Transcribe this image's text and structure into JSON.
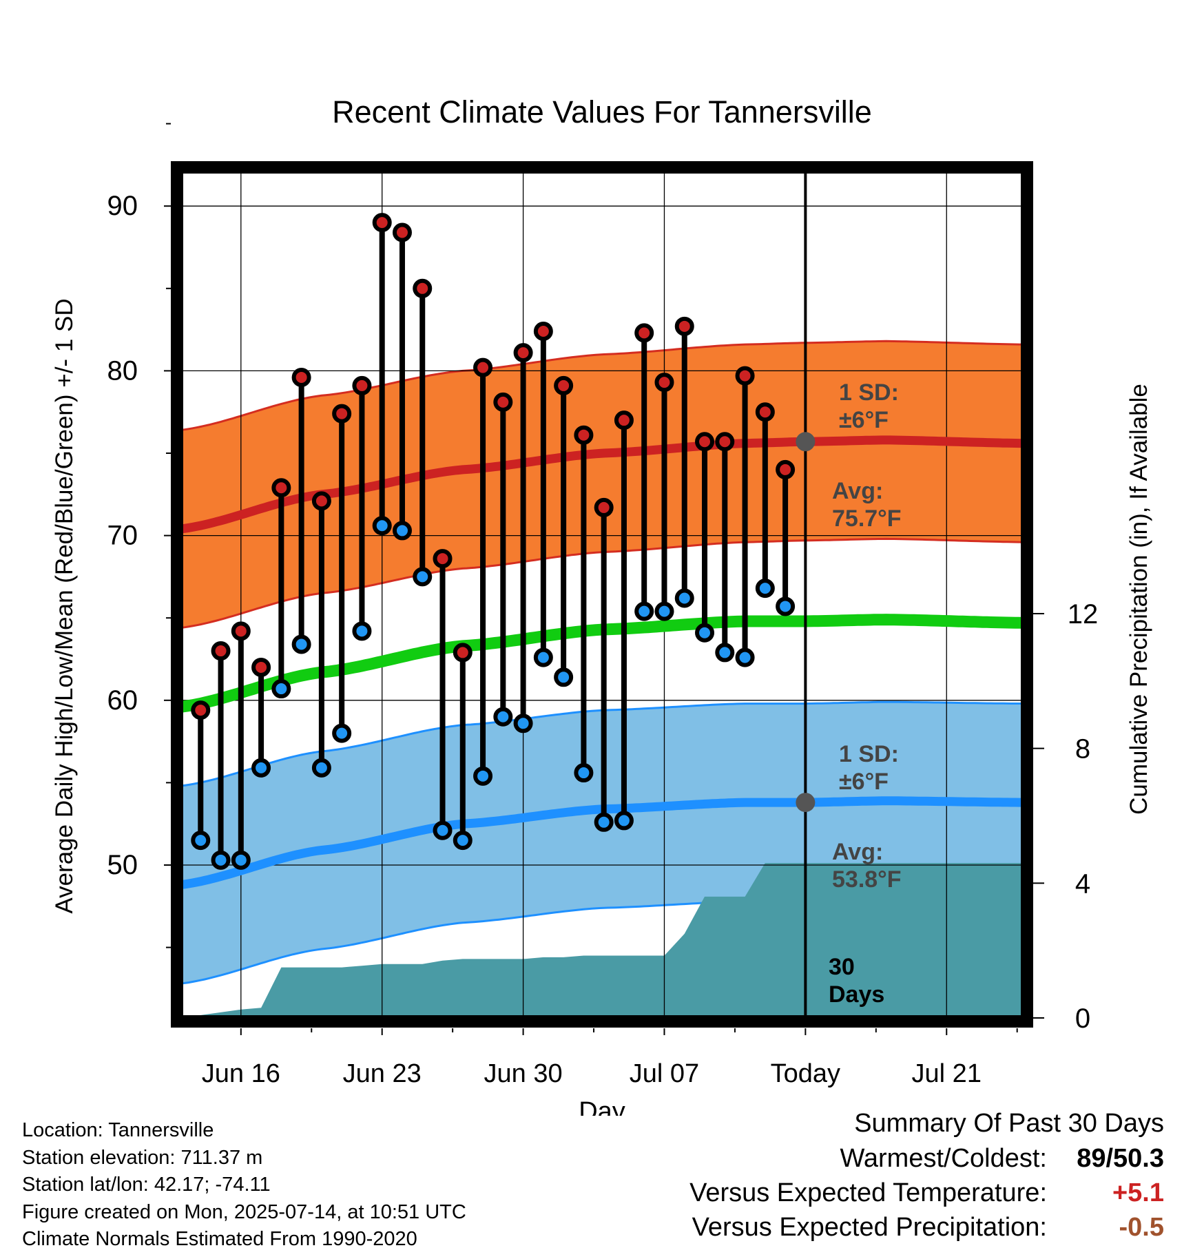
{
  "chart_data": {
    "type": "line",
    "title": "Recent Climate Values For Tannersville",
    "xlabel": "Day",
    "ylabel": "Average Daily High/Low/Mean (Red/Blue/Green) +/- 1 SD",
    "y2label": "Cumulative Precipitation (in), If Available",
    "x_ticks": [
      "Jun 16",
      "Jun 23",
      "Jun 30",
      "Jul 07",
      "Today",
      "Jul 21"
    ],
    "x_tick_days": [
      3,
      10,
      17,
      24,
      31,
      38
    ],
    "x_range_days": [
      0,
      41.8
    ],
    "ylim": [
      42,
      95
    ],
    "y_ticks": [
      50,
      60,
      70,
      80,
      90
    ],
    "y2lim": [
      0,
      24
    ],
    "y2_ticks": [
      0,
      4,
      8,
      12
    ],
    "today_day": 31,
    "grid": true,
    "colors": {
      "high_band": "#f57c2f",
      "high_edge": "#d42d20",
      "high_avg": "#cc2222",
      "low_band": "#80bfe6",
      "low_edge": "#1e90ff",
      "low_avg": "#1e90ff",
      "mean": "#11cc11",
      "precip": "#4a9ba5",
      "high_point": "#cc2222",
      "low_point": "#2196f3",
      "avg_marker": "#555555",
      "annotation": "#444444"
    },
    "normals": {
      "days": [
        0,
        7,
        14,
        21,
        28,
        31,
        35,
        41.8
      ],
      "high_avg": [
        70.4,
        72.5,
        74.0,
        75.0,
        75.6,
        75.7,
        75.8,
        75.6
      ],
      "low_avg": [
        48.8,
        50.9,
        52.5,
        53.4,
        53.8,
        53.8,
        53.9,
        53.8
      ],
      "mean": [
        59.6,
        61.7,
        63.3,
        64.3,
        64.8,
        64.8,
        64.9,
        64.7
      ],
      "sd": 6
    },
    "series": [
      {
        "name": "High",
        "days": [
          1,
          2,
          3,
          4,
          5,
          6,
          7,
          8,
          9,
          10,
          11,
          12,
          13,
          14,
          15,
          16,
          17,
          18,
          19,
          20,
          21,
          22,
          23,
          24,
          25,
          26,
          27,
          28,
          29,
          30
        ],
        "values": [
          59.4,
          63.0,
          64.2,
          62.0,
          72.9,
          79.6,
          72.1,
          77.4,
          79.1,
          89.0,
          88.4,
          85.0,
          68.6,
          62.9,
          80.2,
          78.1,
          81.1,
          82.4,
          79.1,
          76.1,
          71.7,
          77.0,
          82.3,
          79.3,
          82.7,
          75.7,
          75.7,
          79.7,
          77.5,
          74.0
        ]
      },
      {
        "name": "Low",
        "days": [
          1,
          2,
          3,
          4,
          5,
          6,
          7,
          8,
          9,
          10,
          11,
          12,
          13,
          14,
          15,
          16,
          17,
          18,
          19,
          20,
          21,
          22,
          23,
          24,
          25,
          26,
          27,
          28,
          29,
          30
        ],
        "values": [
          51.5,
          50.3,
          50.3,
          55.9,
          60.7,
          63.4,
          55.9,
          58.0,
          64.2,
          70.6,
          70.3,
          67.5,
          52.1,
          51.5,
          55.4,
          59.0,
          58.6,
          62.6,
          61.4,
          55.6,
          52.6,
          52.7,
          65.4,
          65.4,
          66.2,
          64.1,
          62.9,
          62.6,
          66.8,
          65.7
        ]
      },
      {
        "name": "Cumulative Precipitation",
        "axis": "right",
        "days": [
          0,
          3,
          4,
          5,
          6,
          7,
          8,
          9,
          10,
          11,
          12,
          13,
          14,
          15,
          16,
          17,
          18,
          19,
          20,
          21,
          22,
          23,
          24,
          25,
          26,
          27,
          28,
          29,
          30,
          31,
          41.8
        ],
        "values": [
          0,
          0.25,
          0.3,
          1.5,
          1.5,
          1.5,
          1.5,
          1.55,
          1.6,
          1.6,
          1.6,
          1.7,
          1.75,
          1.75,
          1.75,
          1.75,
          1.8,
          1.8,
          1.85,
          1.85,
          1.85,
          1.85,
          1.85,
          2.5,
          3.6,
          3.6,
          3.6,
          4.6,
          4.6,
          4.6,
          4.6
        ]
      }
    ],
    "annotations": {
      "high_sd": [
        "1 SD:",
        "±6°F"
      ],
      "high_avg": [
        "Avg:",
        "75.7°F"
      ],
      "low_sd": [
        "1 SD:",
        "±6°F"
      ],
      "low_avg": [
        "Avg:",
        "53.8°F"
      ],
      "window": [
        "30",
        "Days"
      ]
    }
  },
  "footer": {
    "location": "Location: Tannersville",
    "elevation": "Station elevation: 711.37 m",
    "latlon": "Station lat/lon: 42.17; -74.11",
    "created": "Figure created on Mon, 2025-07-14, at 10:51 UTC",
    "normals": "Climate Normals Estimated From 1990-2020"
  },
  "summary": {
    "title": "Summary Of Past 30 Days",
    "warmest_label": "Warmest/Coldest:",
    "warmest_value": "89/50.3",
    "temp_label": "Versus Expected Temperature:",
    "temp_value": "+5.1",
    "precip_label": "Versus Expected Precipitation:",
    "precip_value": "-0.5"
  }
}
